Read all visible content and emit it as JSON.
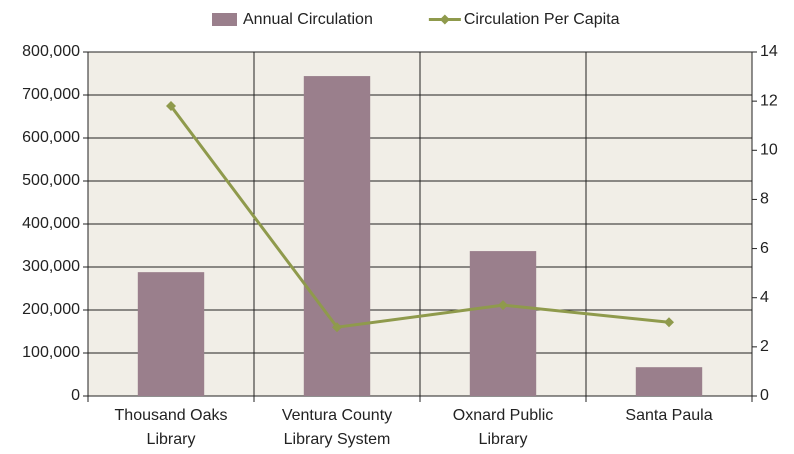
{
  "chart_data": {
    "type": "bar_line",
    "categories": [
      "Thousand Oaks Library",
      "Ventura County Library System",
      "Oxnard Public Library",
      "Santa Paula"
    ],
    "series": [
      {
        "name": "Annual Circulation",
        "color": "#9a7f8c",
        "type": "bar",
        "values": [
          288000,
          744000,
          337000,
          67000
        ]
      },
      {
        "name": "Circulation Per Capita",
        "color": "#8f9a4c",
        "type": "line",
        "axis": "y2",
        "values": [
          11.8,
          2.8,
          3.7,
          3.0
        ]
      }
    ],
    "ylim": [
      0,
      800000
    ],
    "yticks": [
      0,
      {
        "value": 100000,
        "label": "100,000"
      },
      {
        "value": 200000,
        "label": "200,000"
      },
      {
        "value": 300000,
        "label": "300,000"
      },
      {
        "value": 400000,
        "label": "400,000"
      },
      {
        "value": 500000,
        "label": "500,000"
      },
      {
        "value": 600000,
        "label": "600,000"
      },
      {
        "value": 700000,
        "label": "700,000"
      },
      {
        "value": 800000,
        "label": "800,000"
      }
    ],
    "y2lim": [
      0,
      14
    ],
    "y2ticks": [
      0,
      2,
      4,
      6,
      8,
      10,
      12,
      14
    ],
    "grid": true,
    "legend": "top"
  }
}
